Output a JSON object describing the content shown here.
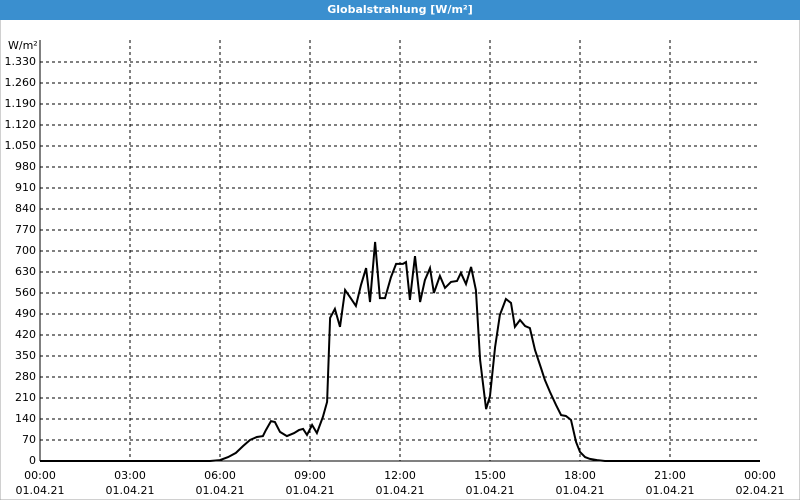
{
  "chart_data": {
    "type": "line",
    "title": "Globalstrahlung [W/m²]",
    "y_label": "W/m²",
    "x": [
      0,
      5.67,
      6.0,
      6.27,
      6.53,
      6.77,
      7.0,
      7.23,
      7.43,
      7.53,
      7.7,
      7.83,
      8.0,
      8.23,
      8.47,
      8.63,
      8.77,
      8.9,
      9.07,
      9.23,
      9.43,
      9.57,
      9.67,
      9.83,
      10.0,
      10.17,
      10.33,
      10.53,
      10.7,
      10.87,
      11.0,
      11.17,
      11.33,
      11.5,
      11.7,
      11.87,
      12.1,
      12.2,
      12.33,
      12.5,
      12.67,
      12.83,
      13.0,
      13.13,
      13.33,
      13.5,
      13.7,
      13.9,
      14.03,
      14.2,
      14.37,
      14.53,
      14.67,
      14.87,
      15.0,
      15.17,
      15.33,
      15.53,
      15.7,
      15.83,
      16.0,
      16.17,
      16.33,
      16.5,
      16.7,
      16.83,
      17.0,
      17.2,
      17.37,
      17.53,
      17.7,
      17.87,
      18.0,
      18.17,
      18.33,
      18.57,
      18.83,
      24
    ],
    "series": [
      {
        "name": "Globalstrahlung",
        "color": "#000000",
        "values": [
          0,
          0,
          3,
          13,
          27,
          50,
          70,
          80,
          83,
          103,
          133,
          130,
          97,
          83,
          93,
          103,
          107,
          87,
          120,
          93,
          147,
          197,
          477,
          507,
          447,
          570,
          547,
          517,
          587,
          643,
          530,
          730,
          543,
          543,
          613,
          657,
          657,
          663,
          537,
          683,
          530,
          603,
          643,
          560,
          617,
          577,
          597,
          600,
          627,
          590,
          647,
          570,
          337,
          173,
          217,
          380,
          487,
          540,
          527,
          447,
          470,
          450,
          443,
          370,
          310,
          270,
          230,
          187,
          153,
          150,
          137,
          63,
          30,
          13,
          7,
          3,
          0,
          0
        ]
      }
    ],
    "xlim": [
      0,
      24
    ],
    "xticks": [
      {
        "value": 0,
        "label": [
          "00:00",
          "01.04.21"
        ]
      },
      {
        "value": 3,
        "label": [
          "03:00",
          "01.04.21"
        ]
      },
      {
        "value": 6,
        "label": [
          "06:00",
          "01.04.21"
        ]
      },
      {
        "value": 9,
        "label": [
          "09:00",
          "01.04.21"
        ]
      },
      {
        "value": 12,
        "label": [
          "12:00",
          "01.04.21"
        ]
      },
      {
        "value": 15,
        "label": [
          "15:00",
          "01.04.21"
        ]
      },
      {
        "value": 18,
        "label": [
          "18:00",
          "01.04.21"
        ]
      },
      {
        "value": 21,
        "label": [
          "21:00",
          "01.04.21"
        ]
      },
      {
        "value": 24,
        "label": [
          "00:00",
          "02.04.21"
        ]
      }
    ],
    "ylim": [
      0,
      1330
    ],
    "yticks": [
      0,
      70,
      140,
      210,
      280,
      350,
      420,
      490,
      560,
      630,
      700,
      770,
      840,
      910,
      980,
      {
        "value": 1050,
        "label": "1.050"
      },
      {
        "value": 1120,
        "label": "1.120"
      },
      {
        "value": 1190,
        "label": "1.190"
      },
      {
        "value": 1260,
        "label": "1.260"
      },
      {
        "value": 1330,
        "label": "1.330"
      }
    ],
    "grid": true
  }
}
